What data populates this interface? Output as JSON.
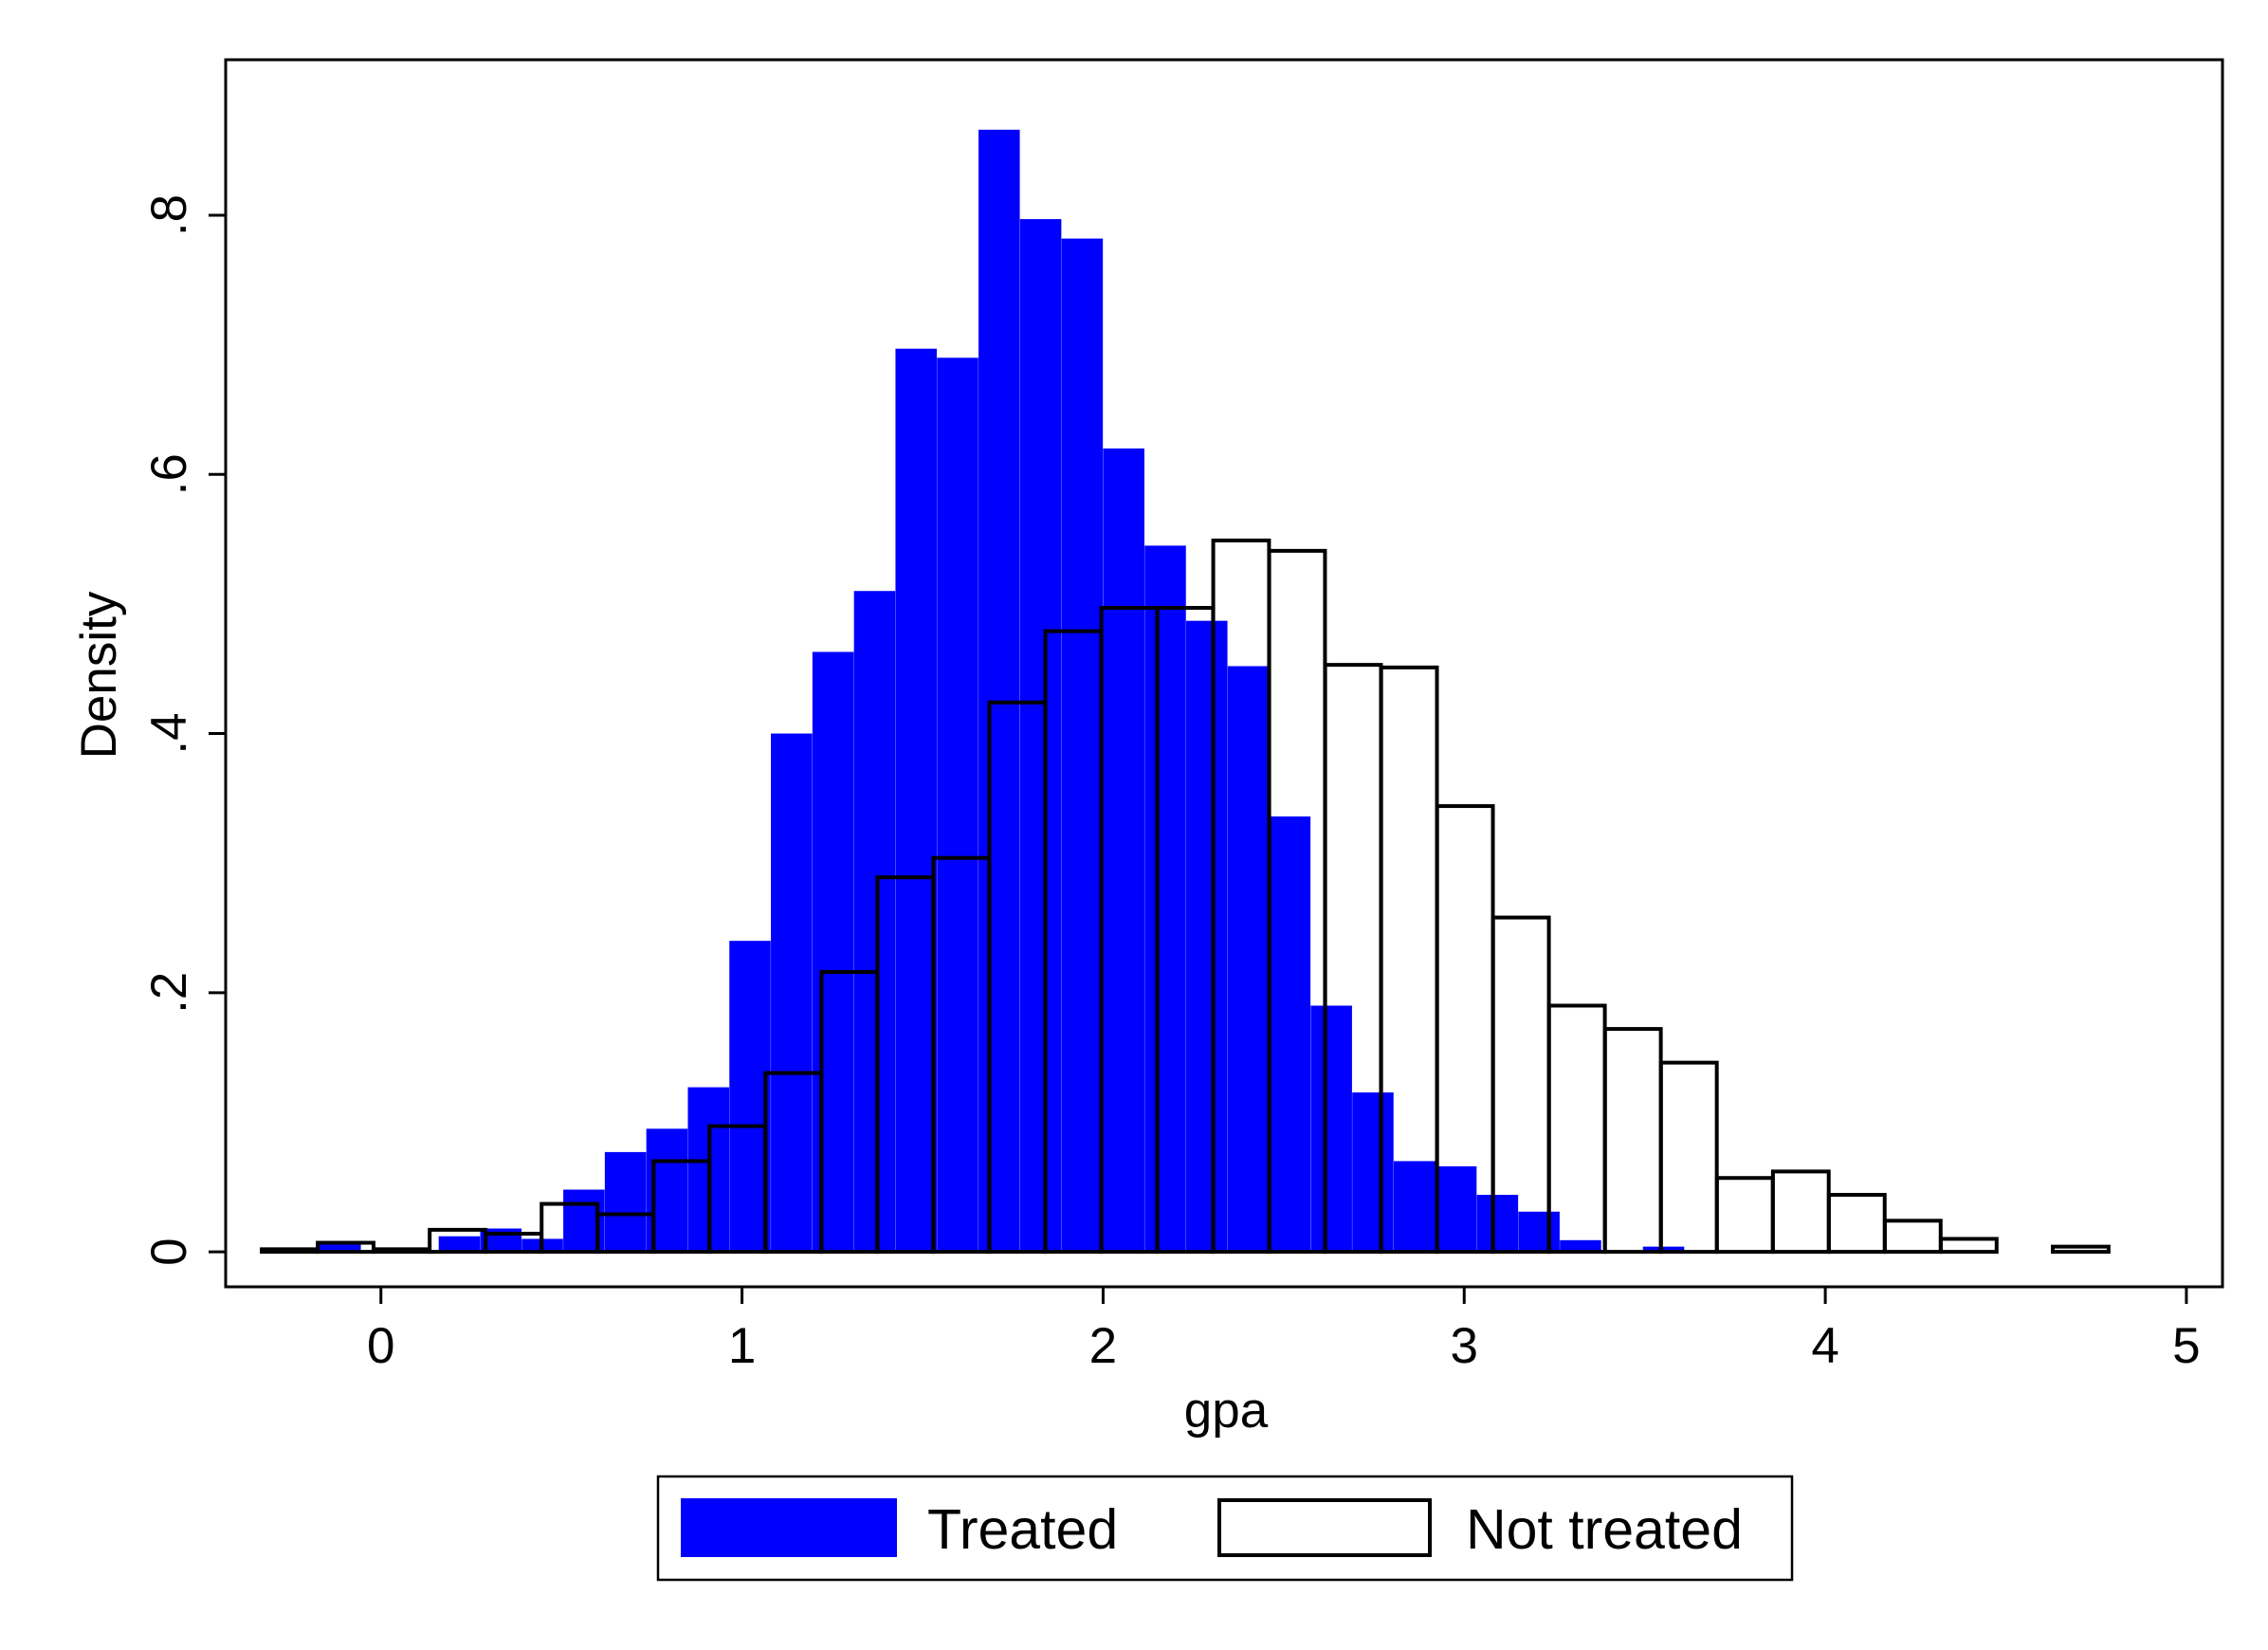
{
  "chart_data": {
    "type": "bar",
    "subtype": "overlaid-histogram",
    "title": "",
    "xlabel": "gpa",
    "ylabel": "Density",
    "xlim": [
      -0.43,
      5.1
    ],
    "ylim": [
      -0.027,
      0.92
    ],
    "xticks": [
      {
        "value": 0,
        "label": "0"
      },
      {
        "value": 1,
        "label": "1"
      },
      {
        "value": 2,
        "label": "2"
      },
      {
        "value": 3,
        "label": "3"
      },
      {
        "value": 4,
        "label": "4"
      },
      {
        "value": 5,
        "label": "5"
      }
    ],
    "yticks": [
      {
        "value": 0,
        "label": "0"
      },
      {
        "value": 0.2,
        "label": ".2"
      },
      {
        "value": 0.4,
        "label": ".4"
      },
      {
        "value": 0.6,
        "label": ".6"
      },
      {
        "value": 0.8,
        "label": ".8"
      }
    ],
    "grid": false,
    "legend_position": "bottom-center",
    "series": [
      {
        "name": "Treated",
        "style": "filled",
        "fill_color": "#0000ff",
        "bin_width": 0.1143,
        "bins": [
          {
            "x0": -0.17,
            "value": 0.006
          },
          {
            "x0": 0.16,
            "value": 0.012
          },
          {
            "x0": 0.275,
            "value": 0.018
          },
          {
            "x0": 0.39,
            "value": 0.01
          },
          {
            "x0": 0.505,
            "value": 0.048
          },
          {
            "x0": 0.62,
            "value": 0.077
          },
          {
            "x0": 0.735,
            "value": 0.095
          },
          {
            "x0": 0.85,
            "value": 0.127
          },
          {
            "x0": 0.965,
            "value": 0.24
          },
          {
            "x0": 1.08,
            "value": 0.4
          },
          {
            "x0": 1.195,
            "value": 0.463
          },
          {
            "x0": 1.31,
            "value": 0.51
          },
          {
            "x0": 1.425,
            "value": 0.697
          },
          {
            "x0": 1.54,
            "value": 0.69
          },
          {
            "x0": 1.655,
            "value": 0.866
          },
          {
            "x0": 1.77,
            "value": 0.797
          },
          {
            "x0": 1.885,
            "value": 0.782
          },
          {
            "x0": 2.0,
            "value": 0.62
          },
          {
            "x0": 2.115,
            "value": 0.545
          },
          {
            "x0": 2.23,
            "value": 0.487
          },
          {
            "x0": 2.345,
            "value": 0.452
          },
          {
            "x0": 2.46,
            "value": 0.336
          },
          {
            "x0": 2.575,
            "value": 0.19
          },
          {
            "x0": 2.69,
            "value": 0.123
          },
          {
            "x0": 2.805,
            "value": 0.07
          },
          {
            "x0": 2.92,
            "value": 0.066
          },
          {
            "x0": 3.035,
            "value": 0.044
          },
          {
            "x0": 3.15,
            "value": 0.031
          },
          {
            "x0": 3.265,
            "value": 0.009
          },
          {
            "x0": 3.495,
            "value": 0.004
          }
        ]
      },
      {
        "name": "Not treated",
        "style": "outlined",
        "fill_color": "none",
        "stroke_color": "#000000",
        "bin_width": 0.1545,
        "bins": [
          {
            "x0": -0.33,
            "value": 0.002
          },
          {
            "x0": -0.175,
            "value": 0.007
          },
          {
            "x0": -0.02,
            "value": 0.002
          },
          {
            "x0": 0.135,
            "value": 0.017
          },
          {
            "x0": 0.29,
            "value": 0.014
          },
          {
            "x0": 0.445,
            "value": 0.037
          },
          {
            "x0": 0.6,
            "value": 0.029
          },
          {
            "x0": 0.755,
            "value": 0.07
          },
          {
            "x0": 0.91,
            "value": 0.097
          },
          {
            "x0": 1.065,
            "value": 0.138
          },
          {
            "x0": 1.22,
            "value": 0.216
          },
          {
            "x0": 1.375,
            "value": 0.289
          },
          {
            "x0": 1.53,
            "value": 0.304
          },
          {
            "x0": 1.685,
            "value": 0.424
          },
          {
            "x0": 1.84,
            "value": 0.479
          },
          {
            "x0": 1.995,
            "value": 0.497
          },
          {
            "x0": 2.15,
            "value": 0.497
          },
          {
            "x0": 2.305,
            "value": 0.549
          },
          {
            "x0": 2.46,
            "value": 0.541
          },
          {
            "x0": 2.615,
            "value": 0.453
          },
          {
            "x0": 2.77,
            "value": 0.451
          },
          {
            "x0": 2.925,
            "value": 0.344
          },
          {
            "x0": 3.08,
            "value": 0.258
          },
          {
            "x0": 3.235,
            "value": 0.19
          },
          {
            "x0": 3.39,
            "value": 0.172
          },
          {
            "x0": 3.545,
            "value": 0.146
          },
          {
            "x0": 3.7,
            "value": 0.057
          },
          {
            "x0": 3.855,
            "value": 0.062
          },
          {
            "x0": 4.01,
            "value": 0.044
          },
          {
            "x0": 4.165,
            "value": 0.024
          },
          {
            "x0": 4.32,
            "value": 0.01
          },
          {
            "x0": 4.63,
            "value": 0.004
          }
        ]
      }
    ]
  }
}
